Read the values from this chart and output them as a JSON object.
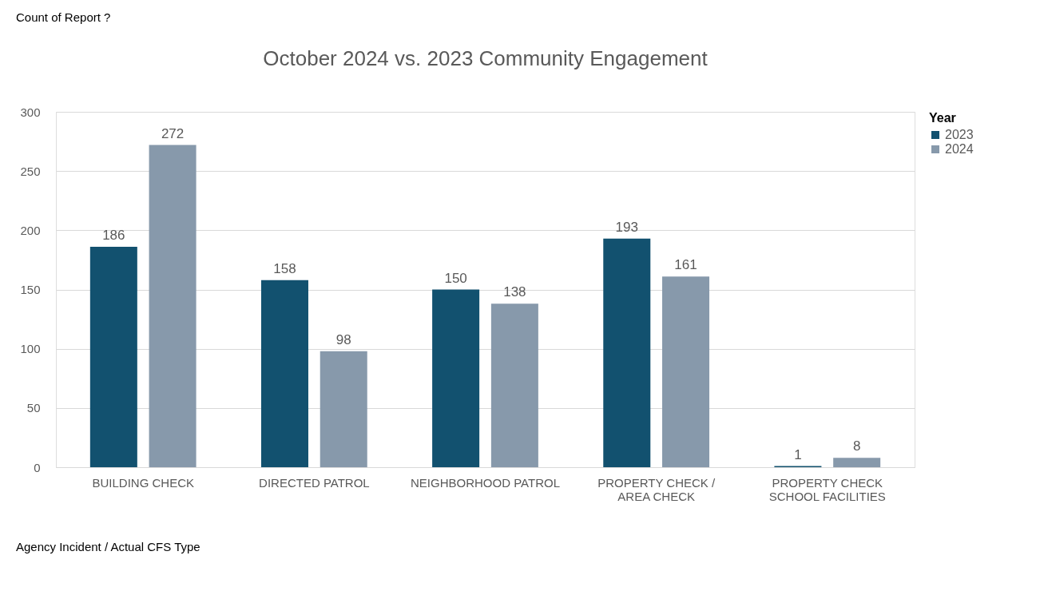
{
  "chart_data": {
    "type": "bar",
    "title": "October 2024 vs. 2023 Community Engagement",
    "annotations": [
      "Count of Report ?",
      "Agency Incident / Actual CFS Type"
    ],
    "legend_title": "Year",
    "categories": [
      "BUILDING CHECK",
      "DIRECTED PATROL",
      "NEIGHBORHOOD PATROL",
      "PROPERTY CHECK / AREA CHECK",
      "PROPERTY CHECK SCHOOL FACILITIES"
    ],
    "series": [
      {
        "name": "2023",
        "color": "#12516f",
        "values": [
          186,
          158,
          150,
          193,
          1
        ]
      },
      {
        "name": "2024",
        "color": "#8799ab",
        "values": [
          272,
          98,
          138,
          161,
          8
        ]
      }
    ],
    "ylim": [
      0,
      300
    ],
    "yticks": [
      0,
      50,
      100,
      150,
      200,
      250,
      300
    ],
    "grid": "y",
    "legend": "right",
    "data_labels": true
  }
}
